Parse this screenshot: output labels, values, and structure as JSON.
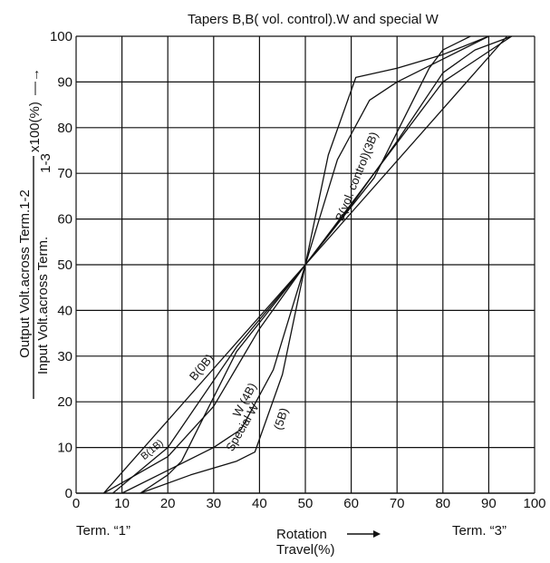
{
  "chart_data": {
    "type": "line",
    "title": "Tapers B,B( vol. control).W and special W",
    "ylabel": {
      "numerator": "Output Volt.across Term.1-2",
      "denominator": "Input Volt.across Term.",
      "denominator_suffix": "1-3",
      "multiplier": "x100(%)",
      "arrow": "—→"
    },
    "xlabel": {
      "line1": "Rotation",
      "line2": "Travel(%)",
      "left_end": "Term. “1”",
      "right_end": "Term. “3”"
    },
    "xlim": [
      0,
      100
    ],
    "ylim": [
      0,
      100
    ],
    "x_ticks": [
      0,
      10,
      20,
      30,
      40,
      50,
      60,
      70,
      80,
      90,
      100
    ],
    "y_ticks": [
      10,
      20,
      30,
      40,
      50,
      60,
      70,
      80,
      90,
      100
    ],
    "y_zero_label": "0",
    "grid": true,
    "series": [
      {
        "name": "B(1B)",
        "label_position": {
          "x": 17,
          "y": 9,
          "rotate": -40
        },
        "points": [
          [
            6,
            0
          ],
          [
            50,
            50
          ],
          [
            94,
            100
          ]
        ]
      },
      {
        "name": "B(0B)",
        "label_position": {
          "x": 28,
          "y": 27,
          "rotate": -50
        },
        "points": [
          [
            6,
            0
          ],
          [
            20,
            8
          ],
          [
            30,
            19
          ],
          [
            40,
            36
          ],
          [
            50,
            50
          ],
          [
            60,
            63
          ],
          [
            70,
            77
          ],
          [
            80,
            92
          ],
          [
            87,
            97
          ],
          [
            95,
            100
          ]
        ]
      },
      {
        "name": "W (4B)",
        "label_position": {
          "x": 37.5,
          "y": 20,
          "rotate": -62
        },
        "points": [
          [
            10,
            0
          ],
          [
            20,
            5
          ],
          [
            30,
            10
          ],
          [
            36,
            14
          ],
          [
            43,
            27
          ],
          [
            50,
            50
          ],
          [
            57,
            73
          ],
          [
            64,
            86
          ],
          [
            70,
            90
          ],
          [
            80,
            95
          ],
          [
            90,
            100
          ]
        ]
      },
      {
        "name": "Special W",
        "label_position": {
          "x": 37,
          "y": 14,
          "rotate": -60
        },
        "points": [
          [
            14,
            0
          ],
          [
            25,
            4
          ],
          [
            35,
            7
          ],
          [
            39,
            9
          ],
          [
            45,
            26
          ],
          [
            50,
            50
          ],
          [
            55,
            74
          ],
          [
            61,
            91
          ],
          [
            70,
            93
          ],
          [
            80,
            96
          ],
          [
            90,
            100
          ]
        ]
      },
      {
        "name": "(5B)",
        "label_position": {
          "x": 45.5,
          "y": 16,
          "rotate": -72
        },
        "points": [
          [
            14,
            0
          ],
          [
            20,
            4
          ],
          [
            23,
            7
          ],
          [
            27,
            15
          ],
          [
            35,
            31
          ],
          [
            50,
            50
          ],
          [
            65,
            69
          ],
          [
            73,
            85
          ],
          [
            77,
            93
          ],
          [
            80,
            97
          ],
          [
            86,
            100
          ]
        ]
      },
      {
        "name": "B(vol. control)(3B)",
        "label_position": {
          "x": 62,
          "y": 69,
          "rotate": -68
        },
        "points": [
          [
            8,
            0
          ],
          [
            20,
            10
          ],
          [
            35,
            32
          ],
          [
            50,
            50
          ],
          [
            65,
            70
          ],
          [
            80,
            90
          ],
          [
            95,
            100
          ]
        ]
      }
    ]
  }
}
